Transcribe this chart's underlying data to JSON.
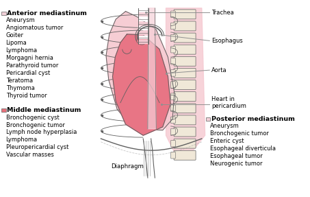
{
  "bg_color": "#ffffff",
  "anterior_title": "Anterior mediastinum",
  "anterior_items": [
    "Aneurysm",
    "Angiomatous tumor",
    "Goiter",
    "Lipoma",
    "Lymphoma",
    "Morgagni hernia",
    "Parathyroid tumor",
    "Pericardial cyst",
    "Teratoma",
    "Thymoma",
    "Thyroid tumor"
  ],
  "middle_title": "Middle mediastinum",
  "middle_items": [
    "Bronchogenic cyst",
    "Bronchogenic tumor",
    "Lymph node hyperplasia",
    "Lymphoma",
    "Pleuropericardial cyst",
    "Vascular masses"
  ],
  "posterior_title": "Posterior mediastinum",
  "posterior_items": [
    "Aneurysm",
    "Bronchogenic tumor",
    "Enteric cyst",
    "Esophageal diverticula",
    "Esophageal tumor",
    "Neurogenic tumor"
  ],
  "right_labels": [
    "Trachea",
    "Esophagus",
    "Aorta",
    "Heart in\npericardium"
  ],
  "bottom_label": "Diaphragm",
  "anterior_swatch": "#f2d0d8",
  "middle_swatch": "#e8707a",
  "posterior_swatch": "#f2d0d8",
  "heart_fill": "#e87585",
  "pericardium_fill": "#f5c8d0",
  "posterior_region_fill": "#f5c8d0",
  "spine_fill": "#f0e8d8",
  "trachea_fill": "#f5d0d8",
  "outline_color": "#606060",
  "line_color": "#909090",
  "text_color": "#000000",
  "rib_color": "#808080"
}
